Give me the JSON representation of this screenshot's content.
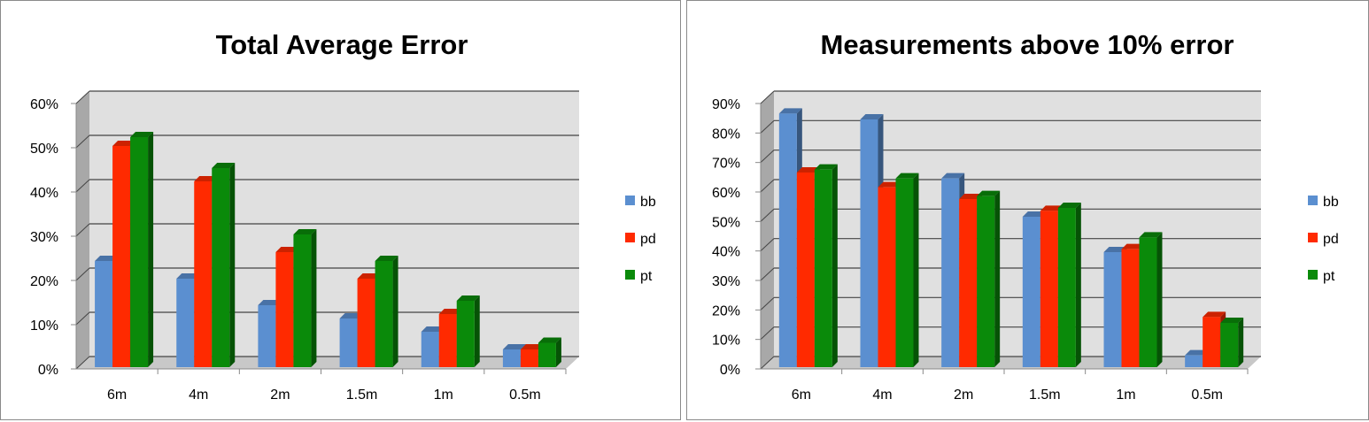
{
  "colors": {
    "bb": "#5b8fd0",
    "pd": "#ff2a00",
    "pt": "#0a8a0a"
  },
  "chart_data": [
    {
      "type": "bar",
      "title": "Total Average Error",
      "categories": [
        "6m",
        "4m",
        "2m",
        "1.5m",
        "1m",
        "0.5m"
      ],
      "ylim": [
        0,
        60
      ],
      "yticks": [
        "0%",
        "10%",
        "20%",
        "30%",
        "40%",
        "50%",
        "60%"
      ],
      "series": [
        {
          "name": "bb",
          "values": [
            24,
            20,
            14,
            11,
            8,
            4
          ]
        },
        {
          "name": "pd",
          "values": [
            50,
            42,
            26,
            20,
            12,
            4
          ]
        },
        {
          "name": "pt",
          "values": [
            52,
            45,
            30,
            24,
            15,
            5.5
          ]
        }
      ],
      "legend_position": "right",
      "grid": true
    },
    {
      "type": "bar",
      "title": "Measurements above 10% error",
      "categories": [
        "6m",
        "4m",
        "2m",
        "1.5m",
        "1m",
        "0.5m"
      ],
      "ylim": [
        0,
        90
      ],
      "yticks": [
        "0%",
        "10%",
        "20%",
        "30%",
        "40%",
        "50%",
        "60%",
        "70%",
        "80%",
        "90%"
      ],
      "series": [
        {
          "name": "bb",
          "values": [
            86,
            84,
            64,
            51,
            39,
            4
          ]
        },
        {
          "name": "pd",
          "values": [
            66,
            61,
            57,
            53,
            40,
            17
          ]
        },
        {
          "name": "pt",
          "values": [
            67,
            64,
            58,
            54,
            44,
            15
          ]
        }
      ],
      "legend_position": "right",
      "grid": true
    }
  ]
}
